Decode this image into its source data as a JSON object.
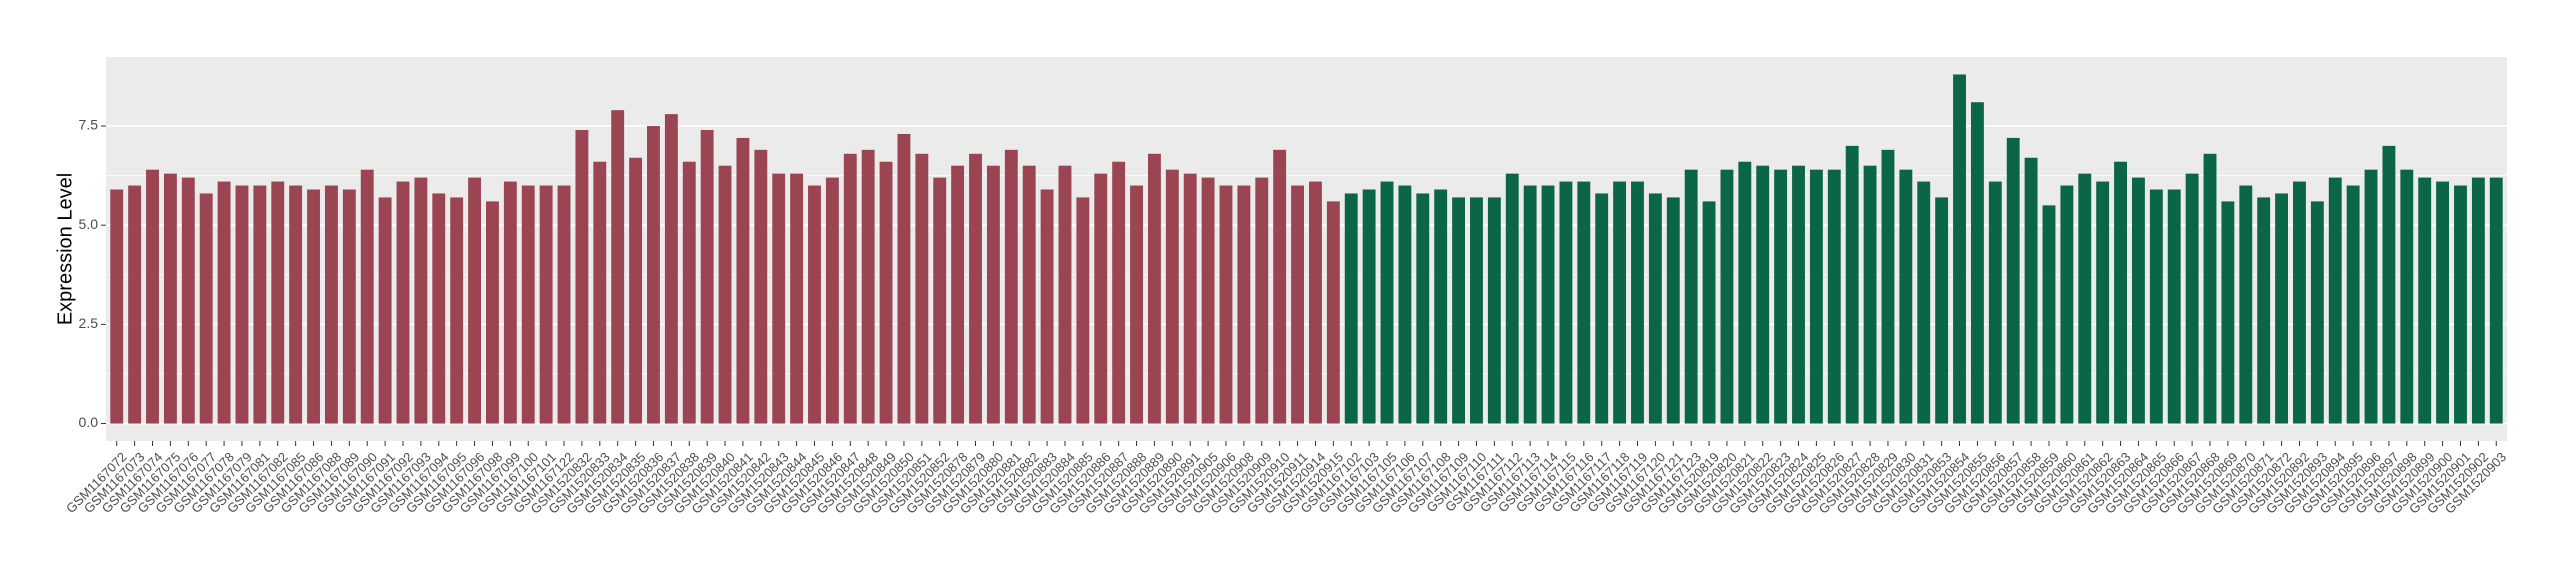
{
  "chart_data": {
    "type": "bar",
    "y_label": "Expression Level",
    "ylim": [
      -0.44,
      9.24
    ],
    "yticks": [
      {
        "value": 0,
        "label": "0.0"
      },
      {
        "value": 2.5,
        "label": "2.5"
      },
      {
        "value": 5,
        "label": "5.0"
      },
      {
        "value": 7.5,
        "label": "7.5"
      }
    ],
    "grid": true,
    "groups": [
      {
        "color": "#9b4452",
        "categories": [
          "GSM1167072",
          "GSM1167073",
          "GSM1167074",
          "GSM1167075",
          "GSM1167076",
          "GSM1167077",
          "GSM1167078",
          "GSM1167079",
          "GSM1167081",
          "GSM1167082",
          "GSM1167085",
          "GSM1167086",
          "GSM1167088",
          "GSM1167089",
          "GSM1167090",
          "GSM1167091",
          "GSM1167092",
          "GSM1167093",
          "GSM1167094",
          "GSM1167095",
          "GSM1167096",
          "GSM1167098",
          "GSM1167099",
          "GSM1167100",
          "GSM1167101",
          "GSM1167122",
          "GSM1520832",
          "GSM1520833",
          "GSM1520834",
          "GSM1520835",
          "GSM1520836",
          "GSM1520837",
          "GSM1520838",
          "GSM1520839",
          "GSM1520840",
          "GSM1520841",
          "GSM1520842",
          "GSM1520843",
          "GSM1520844",
          "GSM1520845",
          "GSM1520846",
          "GSM1520847",
          "GSM1520848",
          "GSM1520849",
          "GSM1520850",
          "GSM1520851",
          "GSM1520852",
          "GSM1520878",
          "GSM1520879",
          "GSM1520880",
          "GSM1520881",
          "GSM1520882",
          "GSM1520883",
          "GSM1520884",
          "GSM1520885",
          "GSM1520886",
          "GSM1520887",
          "GSM1520888",
          "GSM1520889",
          "GSM1520890",
          "GSM1520891",
          "GSM1520905",
          "GSM1520906",
          "GSM1520908",
          "GSM1520909",
          "GSM1520910",
          "GSM1520911",
          "GSM1520914",
          "GSM1520915"
        ],
        "values": [
          5.9,
          6.0,
          6.4,
          6.3,
          6.2,
          5.8,
          6.1,
          6.0,
          6.0,
          6.1,
          6.0,
          5.9,
          6.0,
          5.9,
          6.4,
          5.7,
          6.1,
          6.2,
          5.8,
          5.7,
          6.2,
          5.6,
          6.1,
          6.0,
          6.0,
          6.0,
          7.4,
          6.6,
          7.9,
          6.7,
          7.5,
          7.8,
          6.6,
          7.4,
          6.5,
          7.2,
          6.9,
          6.3,
          6.3,
          6.0,
          6.2,
          6.8,
          6.9,
          6.6,
          7.3,
          6.8,
          6.2,
          6.5,
          6.8,
          6.5,
          6.9,
          6.5,
          5.9,
          6.5,
          5.7,
          6.3,
          6.6,
          6.0,
          6.8,
          6.4,
          6.3,
          6.2,
          6.0,
          6.0,
          6.2,
          6.9,
          6.0,
          6.1,
          5.6
        ]
      },
      {
        "color": "#0b6645",
        "categories": [
          "GSM1167102",
          "GSM1167103",
          "GSM1167105",
          "GSM1167106",
          "GSM1167107",
          "GSM1167108",
          "GSM1167109",
          "GSM1167110",
          "GSM1167111",
          "GSM1167112",
          "GSM1167113",
          "GSM1167114",
          "GSM1167115",
          "GSM1167116",
          "GSM1167117",
          "GSM1167118",
          "GSM1167119",
          "GSM1167120",
          "GSM1167121",
          "GSM1167123",
          "GSM1520819",
          "GSM1520820",
          "GSM1520821",
          "GSM1520822",
          "GSM1520823",
          "GSM1520824",
          "GSM1520825",
          "GSM1520826",
          "GSM1520827",
          "GSM1520828",
          "GSM1520829",
          "GSM1520830",
          "GSM1520831",
          "GSM1520853",
          "GSM1520854",
          "GSM1520855",
          "GSM1520856",
          "GSM1520857",
          "GSM1520858",
          "GSM1520859",
          "GSM1520860",
          "GSM1520861",
          "GSM1520862",
          "GSM1520863",
          "GSM1520864",
          "GSM1520865",
          "GSM1520866",
          "GSM1520867",
          "GSM1520868",
          "GSM1520869",
          "GSM1520870",
          "GSM1520871",
          "GSM1520872",
          "GSM1520892",
          "GSM1520893",
          "GSM1520894",
          "GSM1520895",
          "GSM1520896",
          "GSM1520897",
          "GSM1520898",
          "GSM1520899",
          "GSM1520900",
          "GSM1520901",
          "GSM1520902",
          "GSM1520903"
        ],
        "values": [
          5.8,
          5.9,
          6.1,
          6.0,
          5.8,
          5.9,
          5.7,
          5.7,
          5.7,
          6.3,
          6.0,
          6.0,
          6.1,
          6.1,
          5.8,
          6.1,
          6.1,
          5.8,
          5.7,
          6.4,
          5.6,
          6.4,
          6.6,
          6.5,
          6.4,
          6.5,
          6.4,
          6.4,
          7.0,
          6.5,
          6.9,
          6.4,
          6.1,
          5.7,
          8.8,
          8.1,
          6.1,
          7.2,
          6.7,
          5.5,
          6.0,
          6.3,
          6.1,
          6.6,
          6.2,
          5.9,
          5.9,
          6.3,
          6.8,
          5.6,
          6.0,
          5.7,
          5.8,
          6.1,
          5.6,
          6.2,
          6.0,
          6.4,
          7.0,
          6.4,
          6.2,
          6.1,
          6.0,
          6.2,
          6.2
        ]
      }
    ]
  }
}
